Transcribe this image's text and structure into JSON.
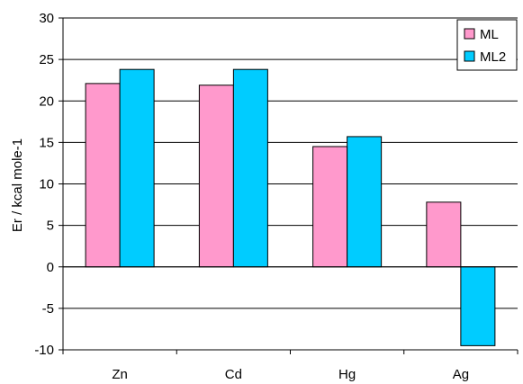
{
  "chart_data": {
    "type": "bar",
    "title": "",
    "xlabel": "",
    "ylabel": "Er  / kcal mole-1",
    "categories": [
      "Zn",
      "Cd",
      "Hg",
      "Ag"
    ],
    "series": [
      {
        "name": "ML",
        "color": "#ff99cc",
        "values": [
          22.1,
          21.9,
          14.5,
          7.8
        ]
      },
      {
        "name": "ML2",
        "color": "#00ccff",
        "values": [
          23.8,
          23.8,
          15.7,
          -9.5
        ]
      }
    ],
    "ylim": [
      -10,
      30
    ],
    "yticks": [
      -10,
      -5,
      0,
      5,
      10,
      15,
      20,
      25,
      30
    ],
    "grid": true,
    "legend_position": "top-right"
  }
}
